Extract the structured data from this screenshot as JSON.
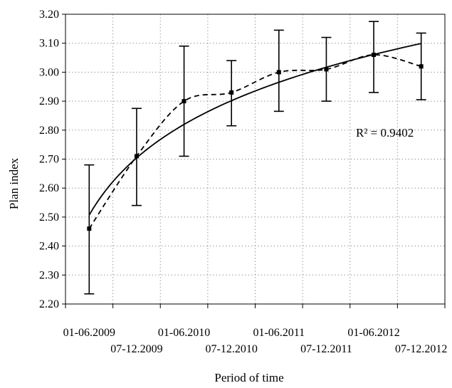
{
  "chart_data": {
    "type": "line",
    "xlabel": "Period of time",
    "ylabel": "Plan index",
    "ylim": [
      2.2,
      3.2
    ],
    "yticks": [
      "2.20",
      "2.30",
      "2.40",
      "2.50",
      "2.60",
      "2.70",
      "2.80",
      "2.90",
      "3.00",
      "3.10",
      "3.20"
    ],
    "categories": [
      "01-06.2009",
      "07-12.2009",
      "01-06.2010",
      "07-12.2010",
      "01-06.2011",
      "07-12.2011",
      "01-06.2012",
      "07-12.2012"
    ],
    "grid": true,
    "series": [
      {
        "style": "dashed-with-markers",
        "values": [
          2.46,
          2.71,
          2.9,
          2.93,
          3.0,
          3.01,
          3.06,
          3.02
        ],
        "error_low": [
          2.235,
          2.54,
          2.71,
          2.815,
          2.865,
          2.9,
          2.93,
          2.905
        ],
        "error_high": [
          2.68,
          2.875,
          3.09,
          3.04,
          3.145,
          3.12,
          3.175,
          3.135
        ]
      },
      {
        "style": "solid-trend",
        "type": "logarithmic",
        "values": [
          2.51,
          2.7,
          2.82,
          2.9,
          2.965,
          3.02,
          3.06,
          3.1
        ]
      }
    ],
    "annotations": [
      {
        "text": "R² = 0.9402"
      }
    ]
  }
}
